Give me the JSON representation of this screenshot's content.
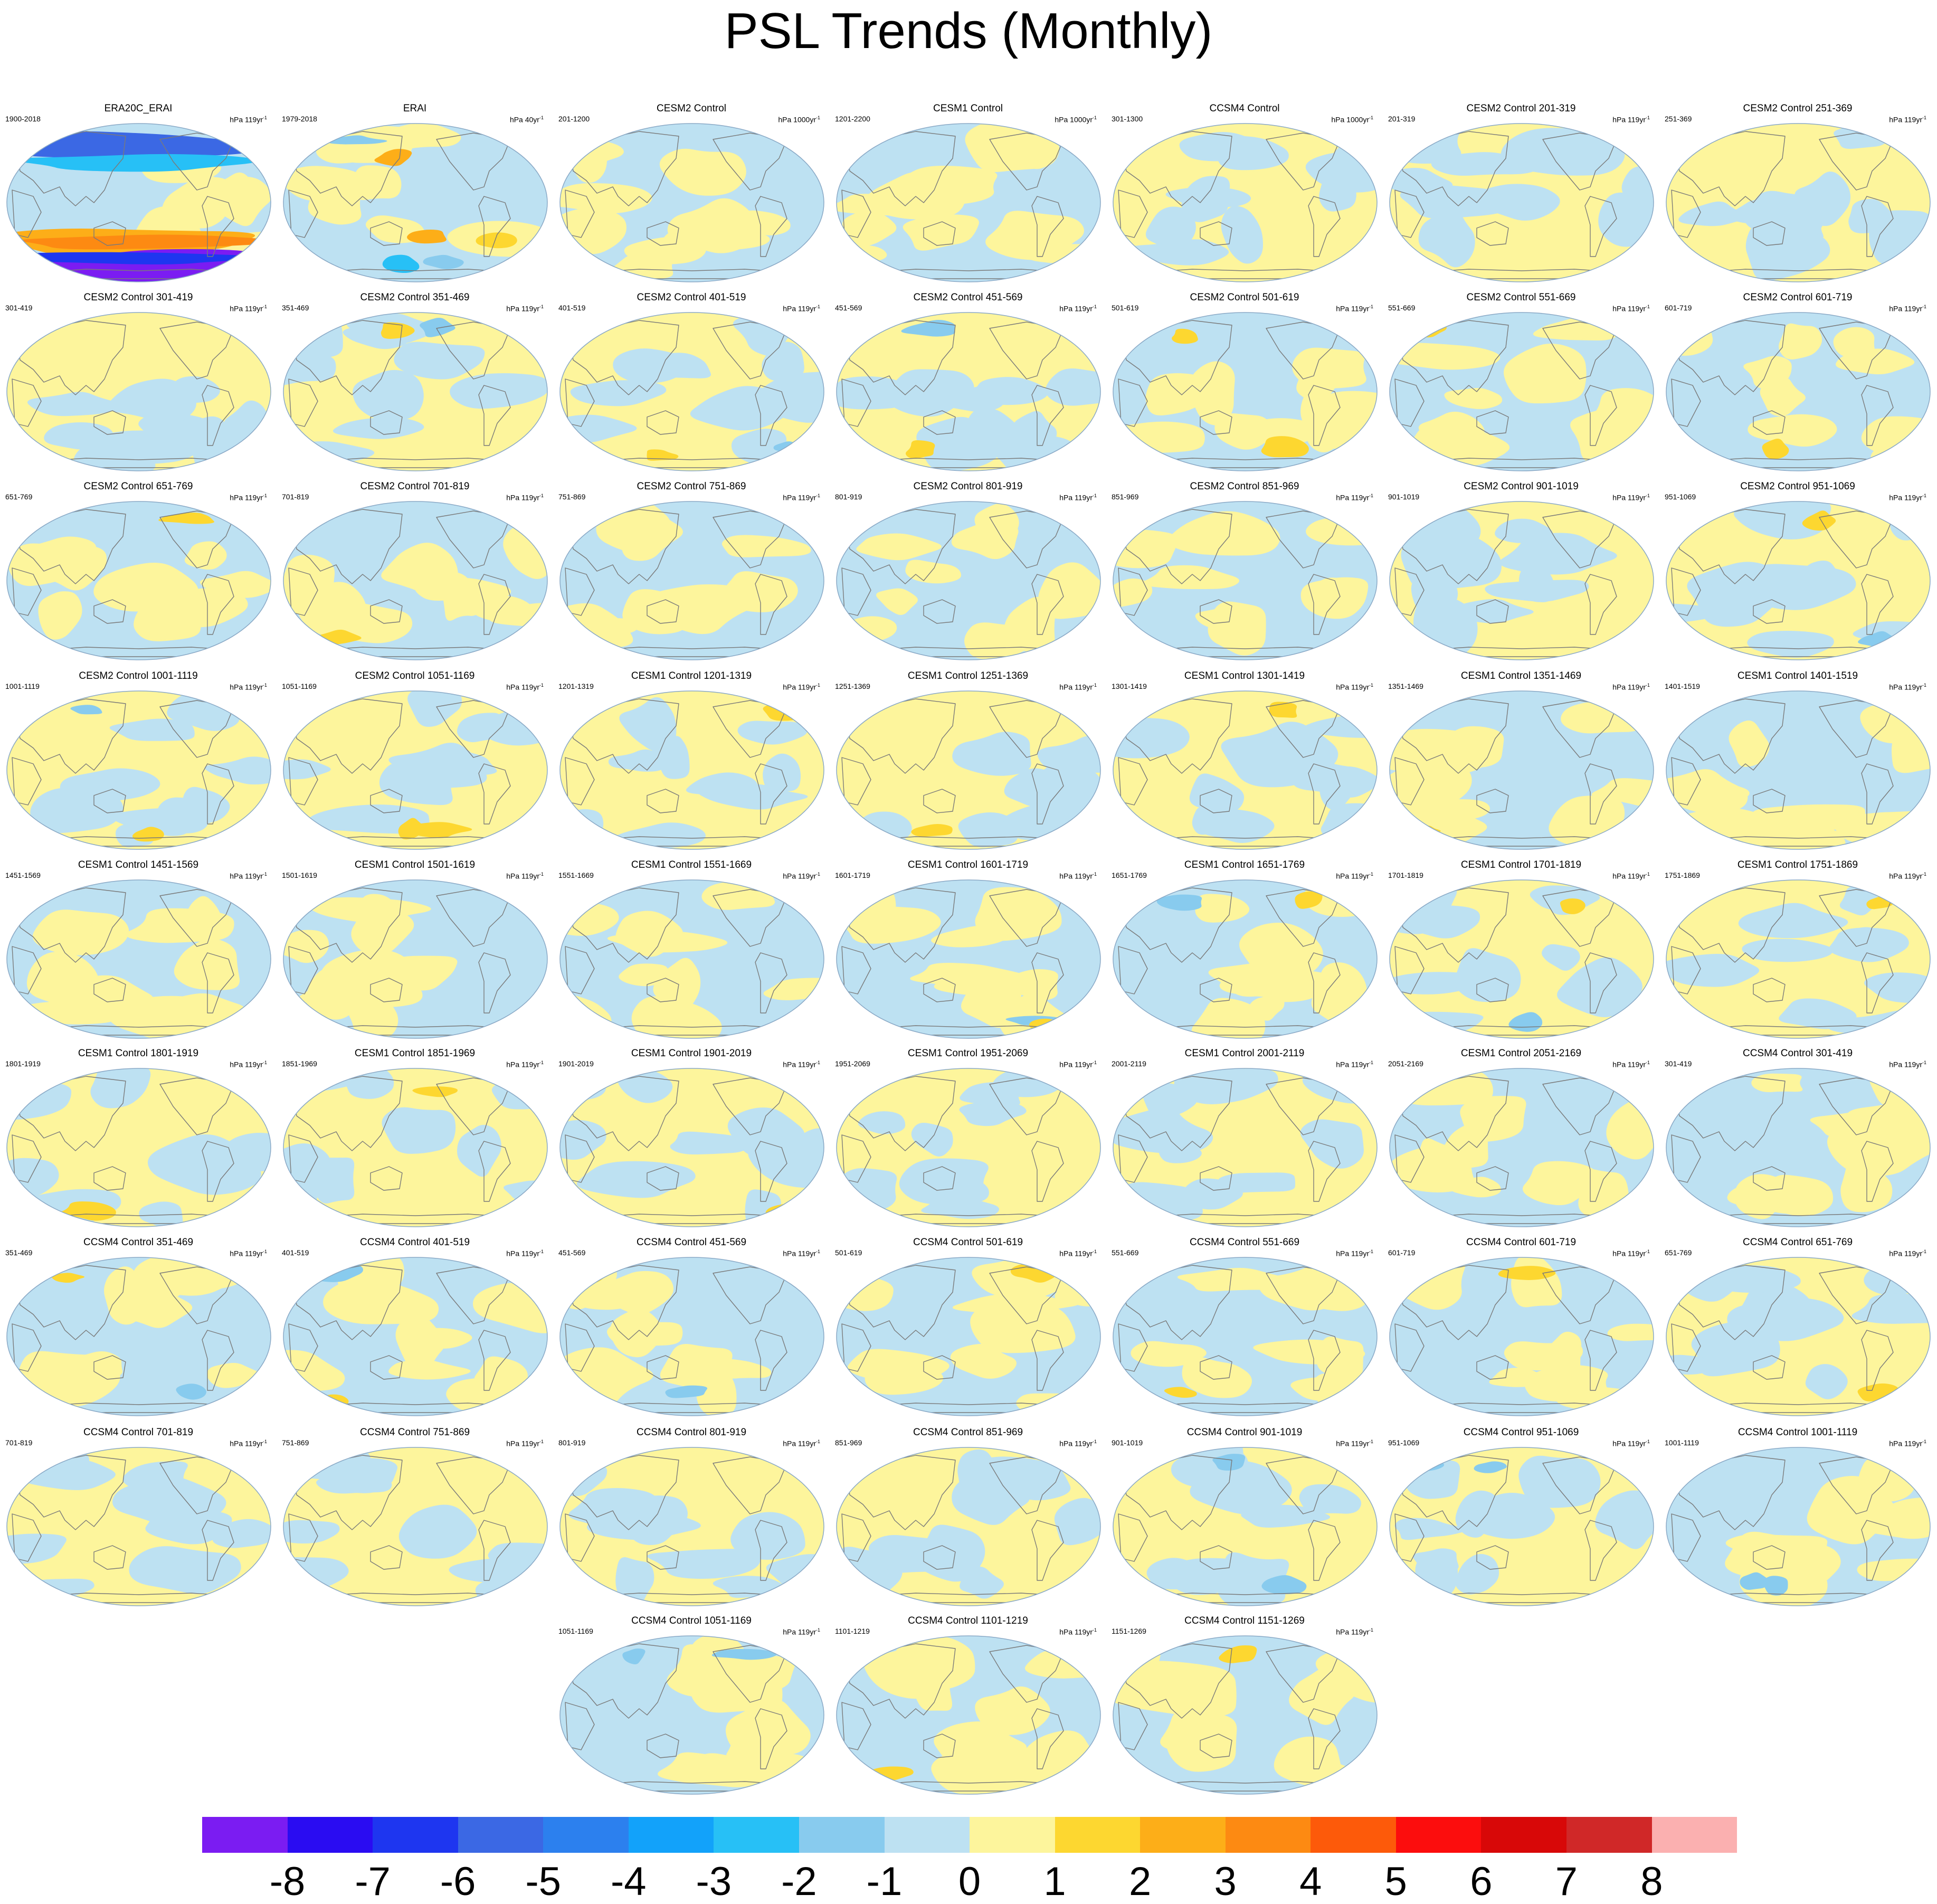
{
  "title": "PSL Trends (Monthly)",
  "colors": {
    "background": "#ffffff",
    "coast": "#7a7a7a",
    "globe_border": "#8aa9c6"
  },
  "colorbar": {
    "colors": [
      "#7b1cf2",
      "#2a0cf2",
      "#1e36f0",
      "#3b68e4",
      "#2c80ee",
      "#12a2fa",
      "#27c0f6",
      "#88cbee",
      "#bde1f2",
      "#fdf59c",
      "#fdd730",
      "#fdae18",
      "#fd8a12",
      "#fd5a0a",
      "#fc0d0d",
      "#d80808",
      "#d02828",
      "#fbb0b0"
    ],
    "labels": [
      "-8",
      "-7",
      "-6",
      "-5",
      "-4",
      "-3",
      "-2",
      "-1",
      "0",
      "1",
      "2",
      "3",
      "4",
      "5",
      "6",
      "7",
      "8"
    ]
  },
  "panels": [
    {
      "title": "ERA20C_ERAI",
      "years": "1900-2018",
      "units": "hPa 119yr",
      "units_sup": "-1",
      "style": "era20c"
    },
    {
      "title": "ERAI",
      "years": "1979-2018",
      "units": "hPa 40yr",
      "units_sup": "-1",
      "style": "erai"
    },
    {
      "title": "CESM2 Control",
      "years": "201-1200",
      "units": "hPa 1000yr",
      "units_sup": "-1",
      "style": "ctl"
    },
    {
      "title": "CESM1 Control",
      "years": "1201-2200",
      "units": "hPa 1000yr",
      "units_sup": "-1",
      "style": "ctl"
    },
    {
      "title": "CCSM4 Control",
      "years": "301-1300",
      "units": "hPa 1000yr",
      "units_sup": "-1",
      "style": "ctl"
    },
    {
      "title": "CESM2 Control 201-319",
      "years": "201-319",
      "units": "hPa 119yr",
      "units_sup": "-1",
      "style": "seg"
    },
    {
      "title": "CESM2 Control 251-369",
      "years": "251-369",
      "units": "hPa 119yr",
      "units_sup": "-1",
      "style": "seg"
    },
    {
      "title": "CESM2 Control 301-419",
      "years": "301-419",
      "units": "hPa 119yr",
      "units_sup": "-1",
      "style": "seg"
    },
    {
      "title": "CESM2 Control 351-469",
      "years": "351-469",
      "units": "hPa 119yr",
      "units_sup": "-1",
      "style": "seg"
    },
    {
      "title": "CESM2 Control 401-519",
      "years": "401-519",
      "units": "hPa 119yr",
      "units_sup": "-1",
      "style": "seg"
    },
    {
      "title": "CESM2 Control 451-569",
      "years": "451-569",
      "units": "hPa 119yr",
      "units_sup": "-1",
      "style": "seg"
    },
    {
      "title": "CESM2 Control 501-619",
      "years": "501-619",
      "units": "hPa 119yr",
      "units_sup": "-1",
      "style": "seg"
    },
    {
      "title": "CESM2 Control 551-669",
      "years": "551-669",
      "units": "hPa 119yr",
      "units_sup": "-1",
      "style": "seg"
    },
    {
      "title": "CESM2 Control 601-719",
      "years": "601-719",
      "units": "hPa 119yr",
      "units_sup": "-1",
      "style": "seg"
    },
    {
      "title": "CESM2 Control 651-769",
      "years": "651-769",
      "units": "hPa 119yr",
      "units_sup": "-1",
      "style": "seg"
    },
    {
      "title": "CESM2 Control 701-819",
      "years": "701-819",
      "units": "hPa 119yr",
      "units_sup": "-1",
      "style": "seg"
    },
    {
      "title": "CESM2 Control 751-869",
      "years": "751-869",
      "units": "hPa 119yr",
      "units_sup": "-1",
      "style": "seg"
    },
    {
      "title": "CESM2 Control 801-919",
      "years": "801-919",
      "units": "hPa 119yr",
      "units_sup": "-1",
      "style": "seg"
    },
    {
      "title": "CESM2 Control 851-969",
      "years": "851-969",
      "units": "hPa 119yr",
      "units_sup": "-1",
      "style": "seg"
    },
    {
      "title": "CESM2 Control 901-1019",
      "years": "901-1019",
      "units": "hPa 119yr",
      "units_sup": "-1",
      "style": "seg"
    },
    {
      "title": "CESM2 Control 951-1069",
      "years": "951-1069",
      "units": "hPa 119yr",
      "units_sup": "-1",
      "style": "seg"
    },
    {
      "title": "CESM2 Control 1001-1119",
      "years": "1001-1119",
      "units": "hPa 119yr",
      "units_sup": "-1",
      "style": "seg"
    },
    {
      "title": "CESM2 Control 1051-1169",
      "years": "1051-1169",
      "units": "hPa 119yr",
      "units_sup": "-1",
      "style": "seg"
    },
    {
      "title": "CESM1 Control 1201-1319",
      "years": "1201-1319",
      "units": "hPa 119yr",
      "units_sup": "-1",
      "style": "seg"
    },
    {
      "title": "CESM1 Control 1251-1369",
      "years": "1251-1369",
      "units": "hPa 119yr",
      "units_sup": "-1",
      "style": "seg"
    },
    {
      "title": "CESM1 Control 1301-1419",
      "years": "1301-1419",
      "units": "hPa 119yr",
      "units_sup": "-1",
      "style": "seg"
    },
    {
      "title": "CESM1 Control 1351-1469",
      "years": "1351-1469",
      "units": "hPa 119yr",
      "units_sup": "-1",
      "style": "seg"
    },
    {
      "title": "CESM1 Control 1401-1519",
      "years": "1401-1519",
      "units": "hPa 119yr",
      "units_sup": "-1",
      "style": "seg"
    },
    {
      "title": "CESM1 Control 1451-1569",
      "years": "1451-1569",
      "units": "hPa 119yr",
      "units_sup": "-1",
      "style": "seg"
    },
    {
      "title": "CESM1 Control 1501-1619",
      "years": "1501-1619",
      "units": "hPa 119yr",
      "units_sup": "-1",
      "style": "seg"
    },
    {
      "title": "CESM1 Control 1551-1669",
      "years": "1551-1669",
      "units": "hPa 119yr",
      "units_sup": "-1",
      "style": "seg"
    },
    {
      "title": "CESM1 Control 1601-1719",
      "years": "1601-1719",
      "units": "hPa 119yr",
      "units_sup": "-1",
      "style": "seg"
    },
    {
      "title": "CESM1 Control 1651-1769",
      "years": "1651-1769",
      "units": "hPa 119yr",
      "units_sup": "-1",
      "style": "seg"
    },
    {
      "title": "CESM1 Control 1701-1819",
      "years": "1701-1819",
      "units": "hPa 119yr",
      "units_sup": "-1",
      "style": "seg"
    },
    {
      "title": "CESM1 Control 1751-1869",
      "years": "1751-1869",
      "units": "hPa 119yr",
      "units_sup": "-1",
      "style": "seg"
    },
    {
      "title": "CESM1 Control 1801-1919",
      "years": "1801-1919",
      "units": "hPa 119yr",
      "units_sup": "-1",
      "style": "seg"
    },
    {
      "title": "CESM1 Control 1851-1969",
      "years": "1851-1969",
      "units": "hPa 119yr",
      "units_sup": "-1",
      "style": "seg"
    },
    {
      "title": "CESM1 Control 1901-2019",
      "years": "1901-2019",
      "units": "hPa 119yr",
      "units_sup": "-1",
      "style": "seg"
    },
    {
      "title": "CESM1 Control 1951-2069",
      "years": "1951-2069",
      "units": "hPa 119yr",
      "units_sup": "-1",
      "style": "seg"
    },
    {
      "title": "CESM1 Control 2001-2119",
      "years": "2001-2119",
      "units": "hPa 119yr",
      "units_sup": "-1",
      "style": "seg"
    },
    {
      "title": "CESM1 Control 2051-2169",
      "years": "2051-2169",
      "units": "hPa 119yr",
      "units_sup": "-1",
      "style": "seg"
    },
    {
      "title": "CCSM4 Control 301-419",
      "years": "301-419",
      "units": "hPa 119yr",
      "units_sup": "-1",
      "style": "seg"
    },
    {
      "title": "CCSM4 Control 351-469",
      "years": "351-469",
      "units": "hPa 119yr",
      "units_sup": "-1",
      "style": "seg"
    },
    {
      "title": "CCSM4 Control 401-519",
      "years": "401-519",
      "units": "hPa 119yr",
      "units_sup": "-1",
      "style": "seg"
    },
    {
      "title": "CCSM4 Control 451-569",
      "years": "451-569",
      "units": "hPa 119yr",
      "units_sup": "-1",
      "style": "seg"
    },
    {
      "title": "CCSM4 Control 501-619",
      "years": "501-619",
      "units": "hPa 119yr",
      "units_sup": "-1",
      "style": "seg"
    },
    {
      "title": "CCSM4 Control 551-669",
      "years": "551-669",
      "units": "hPa 119yr",
      "units_sup": "-1",
      "style": "seg"
    },
    {
      "title": "CCSM4 Control 601-719",
      "years": "601-719",
      "units": "hPa 119yr",
      "units_sup": "-1",
      "style": "seg"
    },
    {
      "title": "CCSM4 Control 651-769",
      "years": "651-769",
      "units": "hPa 119yr",
      "units_sup": "-1",
      "style": "seg"
    },
    {
      "title": "CCSM4 Control 701-819",
      "years": "701-819",
      "units": "hPa 119yr",
      "units_sup": "-1",
      "style": "seg"
    },
    {
      "title": "CCSM4 Control 751-869",
      "years": "751-869",
      "units": "hPa 119yr",
      "units_sup": "-1",
      "style": "seg"
    },
    {
      "title": "CCSM4 Control 801-919",
      "years": "801-919",
      "units": "hPa 119yr",
      "units_sup": "-1",
      "style": "seg"
    },
    {
      "title": "CCSM4 Control 851-969",
      "years": "851-969",
      "units": "hPa 119yr",
      "units_sup": "-1",
      "style": "seg"
    },
    {
      "title": "CCSM4 Control 901-1019",
      "years": "901-1019",
      "units": "hPa 119yr",
      "units_sup": "-1",
      "style": "seg"
    },
    {
      "title": "CCSM4 Control 951-1069",
      "years": "951-1069",
      "units": "hPa 119yr",
      "units_sup": "-1",
      "style": "seg"
    },
    {
      "title": "CCSM4 Control 1001-1119",
      "years": "1001-1119",
      "units": "hPa 119yr",
      "units_sup": "-1",
      "style": "seg"
    },
    {
      "title": "CCSM4 Control 1051-1169",
      "years": "1051-1169",
      "units": "hPa 119yr",
      "units_sup": "-1",
      "style": "seg"
    },
    {
      "title": "CCSM4 Control 1101-1219",
      "years": "1101-1219",
      "units": "hPa 119yr",
      "units_sup": "-1",
      "style": "seg"
    },
    {
      "title": "CCSM4 Control 1151-1269",
      "years": "1151-1269",
      "units": "hPa 119yr",
      "units_sup": "-1",
      "style": "seg"
    }
  ]
}
